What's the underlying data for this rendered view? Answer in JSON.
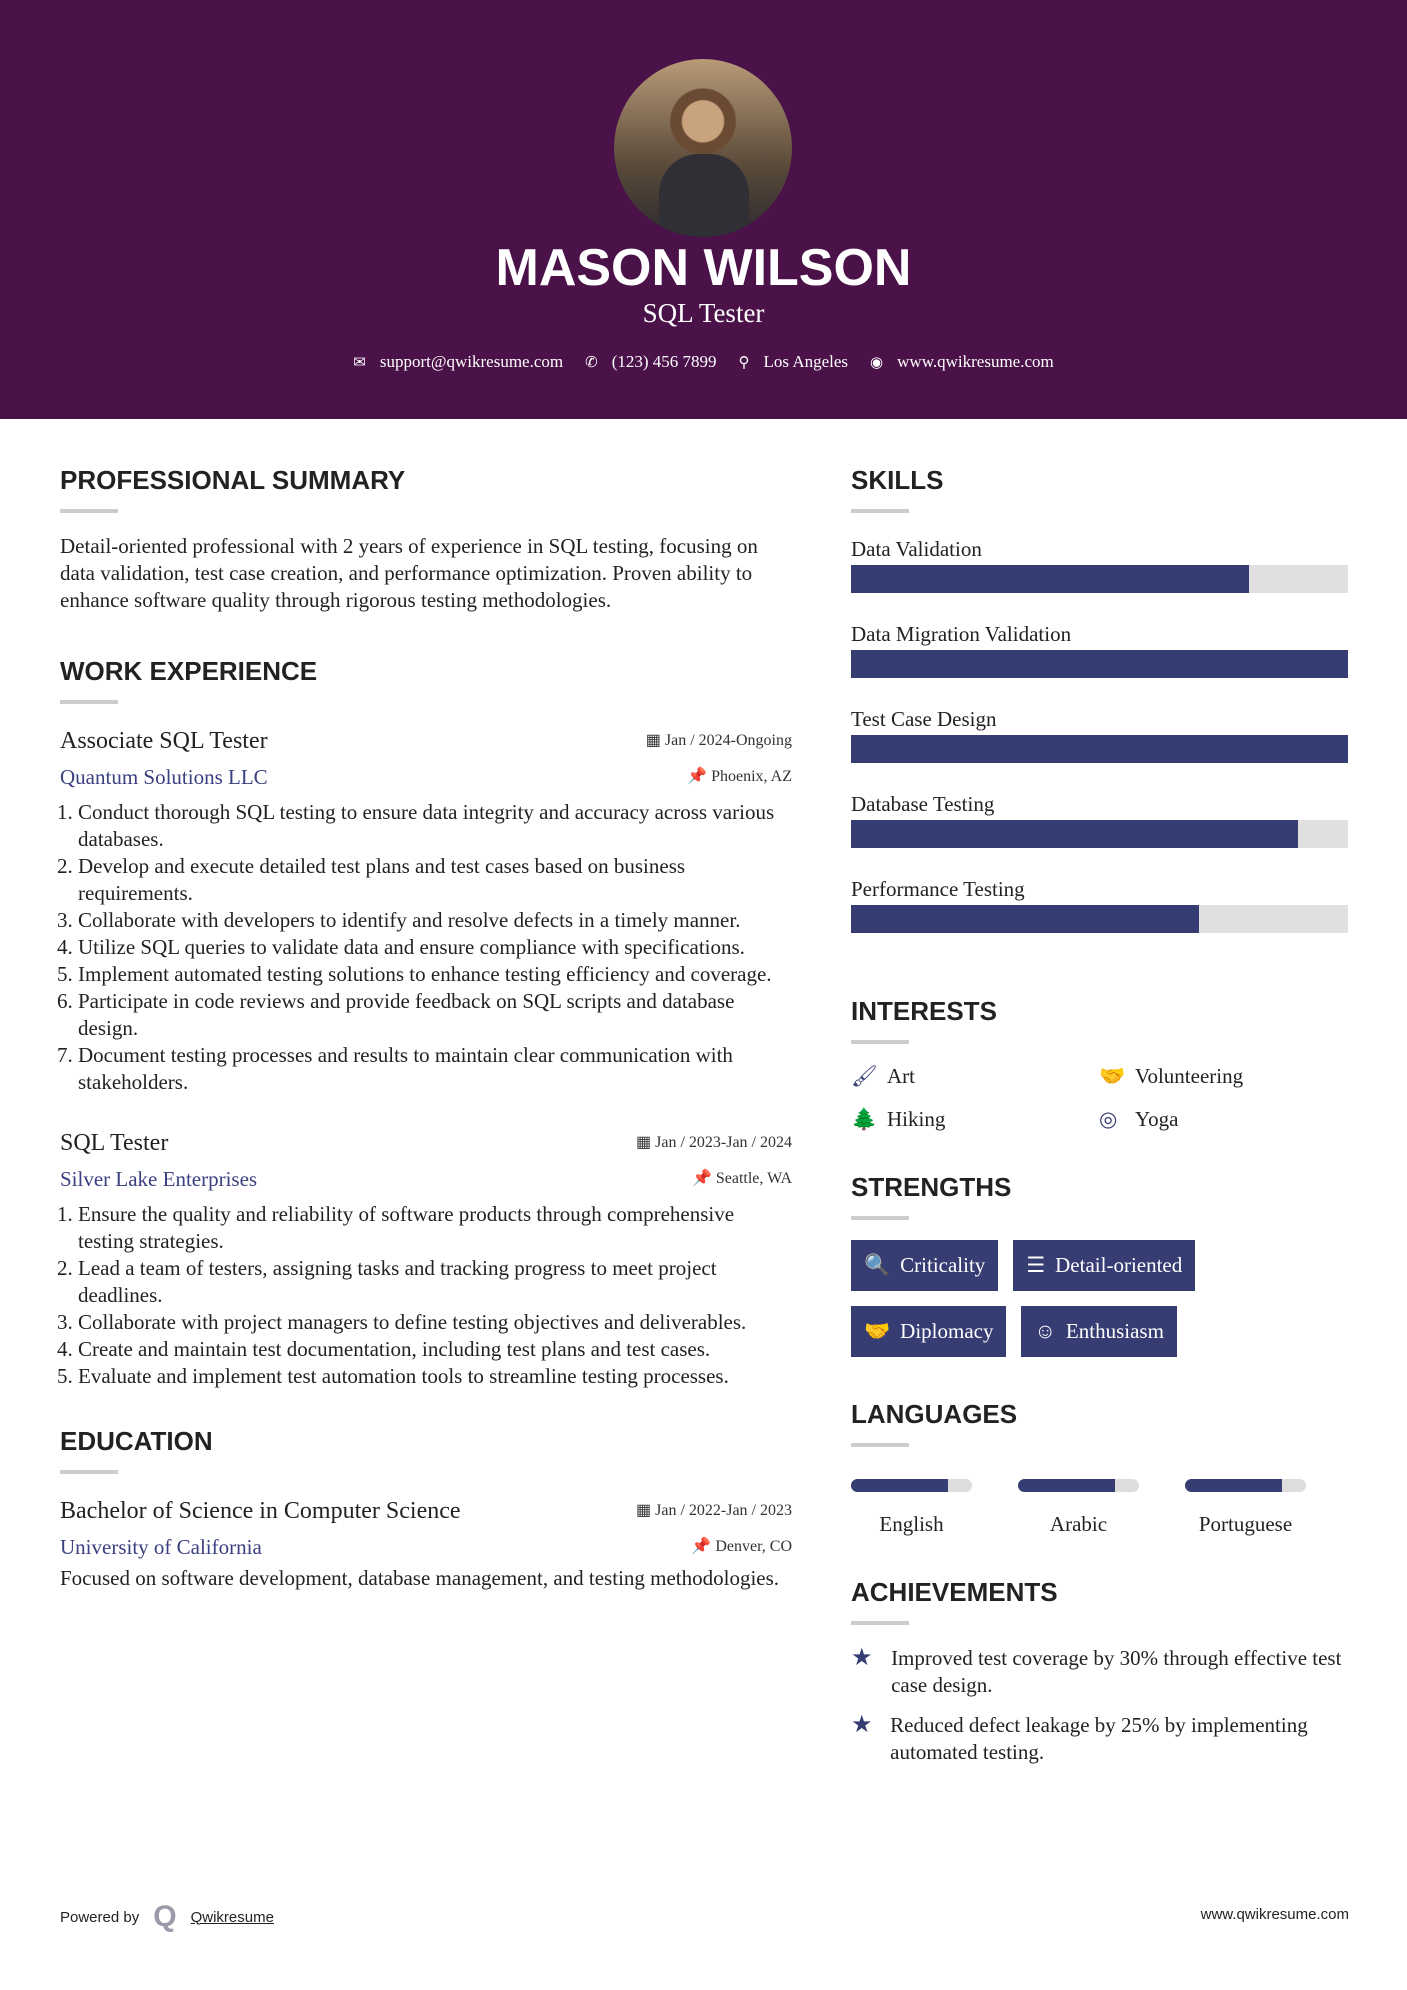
{
  "header": {
    "name": "MASON WILSON",
    "title": "SQL Tester",
    "email": "support@qwikresume.com",
    "phone": "(123) 456 7899",
    "location": "Los Angeles",
    "website": "www.qwikresume.com"
  },
  "summary": {
    "heading": "PROFESSIONAL SUMMARY",
    "text": "Detail-oriented professional with 2 years of experience in SQL testing, focusing on data validation, test case creation, and performance optimization. Proven ability to enhance software quality through rigorous testing methodologies."
  },
  "experience": {
    "heading": "WORK EXPERIENCE",
    "jobs": [
      {
        "title": "Associate SQL Tester",
        "date": "Jan / 2024-Ongoing",
        "company": "Quantum Solutions LLC",
        "location": "Phoenix, AZ",
        "bullets": [
          "Conduct thorough SQL testing to ensure data integrity and accuracy across various databases.",
          "Develop and execute detailed test plans and test cases based on business requirements.",
          "Collaborate with developers to identify and resolve defects in a timely manner.",
          "Utilize SQL queries to validate data and ensure compliance with specifications.",
          "Implement automated testing solutions to enhance testing efficiency and coverage.",
          "Participate in code reviews and provide feedback on SQL scripts and database design.",
          "Document testing processes and results to maintain clear communication with stakeholders."
        ]
      },
      {
        "title": "SQL Tester",
        "date": "Jan / 2023-Jan / 2024",
        "company": "Silver Lake Enterprises",
        "location": "Seattle, WA",
        "bullets": [
          "Ensure the quality and reliability of software products through comprehensive testing strategies.",
          "Lead a team of testers, assigning tasks and tracking progress to meet project deadlines.",
          "Collaborate with project managers to define testing objectives and deliverables.",
          "Create and maintain test documentation, including test plans and test cases.",
          "Evaluate and implement test automation tools to streamline testing processes."
        ]
      }
    ]
  },
  "education": {
    "heading": "EDUCATION",
    "degree": "Bachelor of Science in Computer Science",
    "date": "Jan / 2022-Jan / 2023",
    "school": "University of California",
    "location": "Denver, CO",
    "text": "Focused on software development, database management, and testing methodologies."
  },
  "skills": {
    "heading": "SKILLS",
    "items": [
      {
        "label": "Data Validation",
        "level": 0.8
      },
      {
        "label": "Data Migration Validation",
        "level": 1.0
      },
      {
        "label": "Test Case Design",
        "level": 1.0
      },
      {
        "label": "Database Testing",
        "level": 0.9
      },
      {
        "label": "Performance Testing",
        "level": 0.7
      }
    ]
  },
  "interests": {
    "heading": "INTERESTS",
    "items": [
      {
        "label": "Art",
        "icon": "paintbrush-icon"
      },
      {
        "label": "Volunteering",
        "icon": "handshake-icon"
      },
      {
        "label": "Hiking",
        "icon": "tree-icon"
      },
      {
        "label": "Yoga",
        "icon": "lifering-icon"
      }
    ]
  },
  "strengths": {
    "heading": "STRENGTHS",
    "items": [
      {
        "label": "Criticality",
        "icon": "search-icon"
      },
      {
        "label": "Detail-oriented",
        "icon": "list-icon"
      },
      {
        "label": "Diplomacy",
        "icon": "handshake-icon"
      },
      {
        "label": "Enthusiasm",
        "icon": "smile-icon"
      }
    ]
  },
  "languages": {
    "heading": "LANGUAGES",
    "items": [
      {
        "label": "English",
        "level": 0.8
      },
      {
        "label": "Arabic",
        "level": 0.8
      },
      {
        "label": "Portuguese",
        "level": 0.8
      }
    ]
  },
  "achievements": {
    "heading": "ACHIEVEMENTS",
    "items": [
      "Improved test coverage by 30% through effective test case design.",
      "Reduced defect leakage by 25% by implementing automated testing."
    ]
  },
  "footer": {
    "powered_by": "Powered by",
    "brand": "Qwikresume",
    "website": "www.qwikresume.com"
  },
  "colors": {
    "header": "#4a1248",
    "accent": "#363d73"
  }
}
